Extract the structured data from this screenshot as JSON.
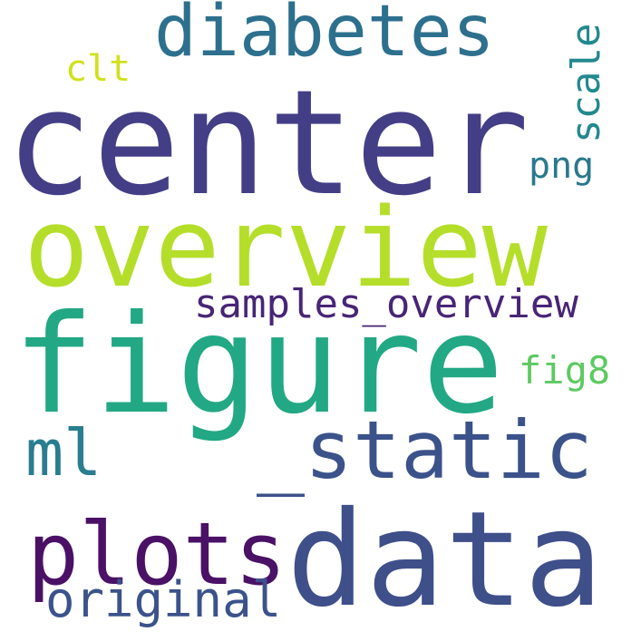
{
  "word_cloud": {
    "words": [
      {
        "text": "center",
        "color": "#433e85"
      },
      {
        "text": "overview",
        "color": "#b5de2b"
      },
      {
        "text": "figure",
        "color": "#22a884"
      },
      {
        "text": "data",
        "color": "#3e4f8a"
      },
      {
        "text": "_static",
        "color": "#3b528b"
      },
      {
        "text": "plots",
        "color": "#4b1166"
      },
      {
        "text": "diabetes",
        "color": "#2d708e"
      },
      {
        "text": "original",
        "color": "#3b528b"
      },
      {
        "text": "samples_overview",
        "color": "#482576"
      },
      {
        "text": "ml",
        "color": "#287d8e"
      },
      {
        "text": "png",
        "color": "#2a788e"
      },
      {
        "text": "clt",
        "color": "#d0e11c"
      },
      {
        "text": "fig8",
        "color": "#5ec962"
      },
      {
        "text": "scale",
        "color": "#23898e"
      }
    ]
  }
}
